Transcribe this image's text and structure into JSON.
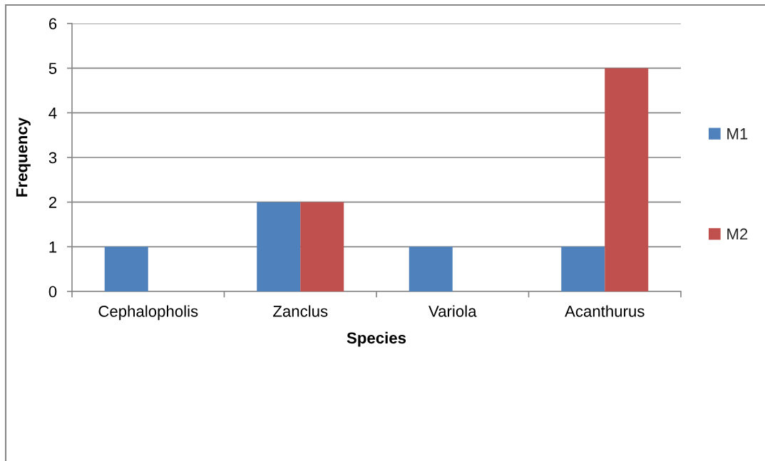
{
  "chart_data": {
    "type": "bar",
    "xlabel": "Species",
    "ylabel": "Frequency",
    "categories": [
      "Cephalopholis",
      "Zanclus",
      "Variola",
      "Acanthurus"
    ],
    "series": [
      {
        "name": "M1",
        "color": "#4f81bd",
        "values": [
          1,
          2,
          1,
          1
        ]
      },
      {
        "name": "M2",
        "color": "#c0504d",
        "values": [
          0,
          2,
          0,
          5
        ]
      }
    ],
    "ylim": [
      0,
      6
    ],
    "yticks": [
      0,
      1,
      2,
      3,
      4,
      5,
      6
    ],
    "grid": "y",
    "legend": "right"
  }
}
